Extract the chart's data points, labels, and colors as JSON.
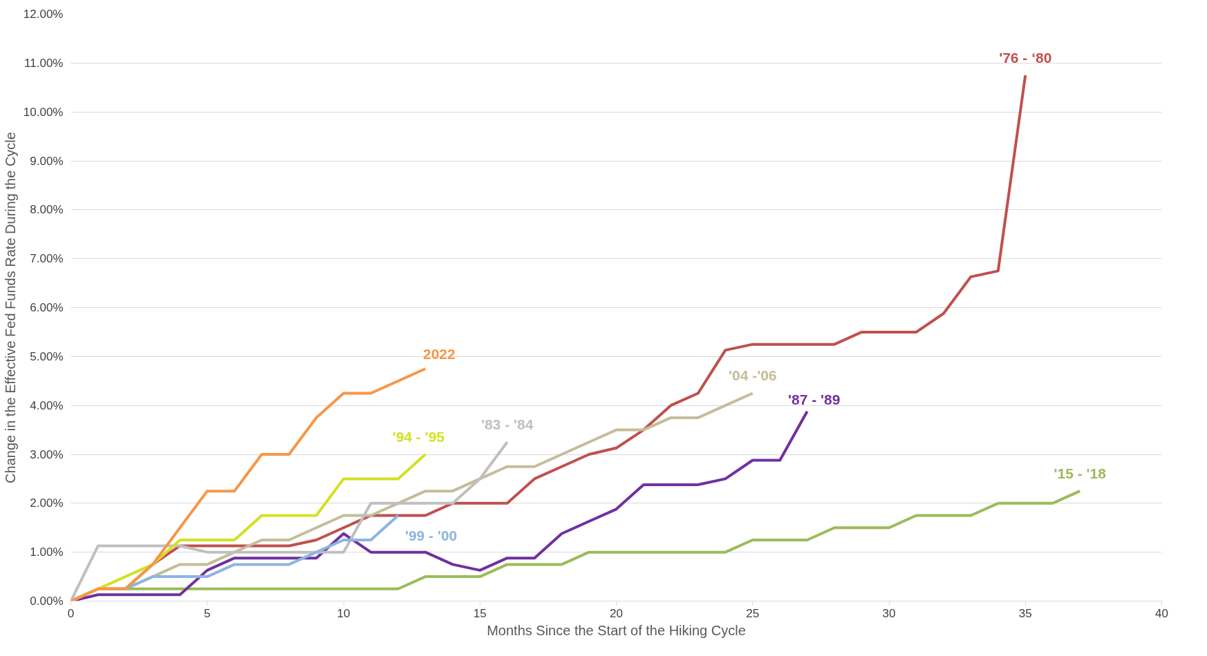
{
  "chart_data": {
    "type": "line",
    "xlabel": "Months Since the Start of the Hiking Cycle",
    "ylabel": "Change in the Effective Fed Funds Rate During the Cycle",
    "xlim": [
      0,
      40
    ],
    "xticks": [
      0,
      5,
      10,
      15,
      20,
      25,
      30,
      35,
      40
    ],
    "ylim": [
      0,
      12
    ],
    "yticks": [
      {
        "value": 0,
        "label": "0.00%"
      },
      {
        "value": 1,
        "label": "1.00%"
      },
      {
        "value": 2,
        "label": "2.00%"
      },
      {
        "value": 3,
        "label": "3.00%"
      },
      {
        "value": 4,
        "label": "4.00%"
      },
      {
        "value": 5,
        "label": "5.00%"
      },
      {
        "value": 6,
        "label": "6.00%"
      },
      {
        "value": 7,
        "label": "7.00%"
      },
      {
        "value": 8,
        "label": "8.00%"
      },
      {
        "value": 9,
        "label": "9.00%"
      },
      {
        "value": 10,
        "label": "10.00%"
      },
      {
        "value": 11,
        "label": "11.00%"
      },
      {
        "value": 12,
        "label": "12.00%"
      }
    ],
    "grid": "y",
    "marker": "none",
    "line_style": "solid",
    "series": [
      {
        "name": "'76 - ‘80",
        "color": "#c0504d",
        "x": [
          0,
          1,
          2,
          3,
          4,
          5,
          6,
          7,
          8,
          9,
          10,
          11,
          12,
          13,
          14,
          15,
          16,
          17,
          18,
          19,
          20,
          21,
          22,
          23,
          24,
          25,
          26,
          27,
          28,
          29,
          30,
          31,
          32,
          33,
          34,
          35
        ],
        "values": [
          0,
          0.25,
          0.25,
          0.75,
          1.13,
          1.13,
          1.13,
          1.13,
          1.13,
          1.25,
          1.5,
          1.75,
          1.75,
          1.75,
          2,
          2,
          2,
          2.5,
          2.75,
          3,
          3.13,
          3.5,
          4,
          4.25,
          5.13,
          5.25,
          5.25,
          5.25,
          5.25,
          5.5,
          5.5,
          5.5,
          5.88,
          6.63,
          6.75,
          10.75
        ]
      },
      {
        "name": "'15 - '18",
        "color": "#9bbb59",
        "x": [
          0,
          1,
          2,
          3,
          4,
          5,
          6,
          7,
          8,
          9,
          10,
          11,
          12,
          13,
          14,
          15,
          16,
          17,
          18,
          19,
          20,
          21,
          22,
          23,
          24,
          25,
          26,
          27,
          28,
          29,
          30,
          31,
          32,
          33,
          34,
          35,
          36,
          37
        ],
        "values": [
          0,
          0.25,
          0.25,
          0.25,
          0.25,
          0.25,
          0.25,
          0.25,
          0.25,
          0.25,
          0.25,
          0.25,
          0.25,
          0.5,
          0.5,
          0.5,
          0.75,
          0.75,
          0.75,
          1,
          1,
          1,
          1,
          1,
          1,
          1.25,
          1.25,
          1.25,
          1.5,
          1.5,
          1.5,
          1.75,
          1.75,
          1.75,
          2,
          2,
          2,
          2.25
        ]
      },
      {
        "name": "'87 - '89",
        "color": "#7030a0",
        "x": [
          0,
          1,
          2,
          3,
          4,
          5,
          6,
          7,
          8,
          9,
          10,
          11,
          12,
          13,
          14,
          15,
          16,
          17,
          18,
          19,
          20,
          21,
          22,
          23,
          24,
          25,
          26,
          27
        ],
        "values": [
          0,
          0.13,
          0.13,
          0.13,
          0.13,
          0.63,
          0.88,
          0.88,
          0.88,
          0.88,
          1.38,
          1,
          1,
          1,
          0.75,
          0.63,
          0.88,
          0.88,
          1.38,
          1.63,
          1.88,
          2.38,
          2.38,
          2.38,
          2.5,
          2.88,
          2.88,
          3.88
        ]
      },
      {
        "name": "'04 -'06",
        "color": "#c4bd97",
        "x": [
          0,
          1,
          2,
          3,
          4,
          5,
          6,
          7,
          8,
          9,
          10,
          11,
          12,
          13,
          14,
          15,
          16,
          17,
          18,
          19,
          20,
          21,
          22,
          23,
          24,
          25
        ],
        "values": [
          0,
          0.25,
          0.25,
          0.5,
          0.75,
          0.75,
          1,
          1.25,
          1.25,
          1.5,
          1.75,
          1.75,
          2,
          2.25,
          2.25,
          2.5,
          2.75,
          2.75,
          3,
          3.25,
          3.5,
          3.5,
          3.75,
          3.75,
          4,
          4.25
        ]
      },
      {
        "name": "'83 - '84",
        "color": "#bfbfbf",
        "x": [
          0,
          1,
          2,
          3,
          4,
          5,
          6,
          7,
          8,
          9,
          10,
          11,
          12,
          13,
          14,
          15,
          16
        ],
        "values": [
          0,
          1.13,
          1.13,
          1.13,
          1.13,
          1,
          1,
          1,
          1,
          1,
          1,
          2,
          2,
          2,
          2,
          2.5,
          3.25
        ]
      },
      {
        "name": "'99 - '00",
        "color": "#8db4e2",
        "x": [
          2,
          3,
          4,
          5,
          6,
          7,
          8,
          9,
          10,
          11,
          12
        ],
        "values": [
          0.25,
          0.5,
          0.5,
          0.5,
          0.75,
          0.75,
          0.75,
          1,
          1.25,
          1.25,
          1.75
        ]
      },
      {
        "name": "'94 - '95",
        "color": "#d4e021",
        "x": [
          0,
          1,
          2,
          3,
          4,
          5,
          6,
          7,
          8,
          9,
          10,
          11,
          12,
          13
        ],
        "values": [
          0,
          0.25,
          0.5,
          0.75,
          1.25,
          1.25,
          1.25,
          1.75,
          1.75,
          1.75,
          2.5,
          2.5,
          2.5,
          3
        ]
      },
      {
        "name": "2022",
        "color": "#f79646",
        "x": [
          0,
          1,
          2,
          3,
          4,
          5,
          6,
          7,
          8,
          9,
          10,
          11,
          12,
          13
        ],
        "values": [
          0,
          0.25,
          0.25,
          0.75,
          1.5,
          2.25,
          2.25,
          3,
          3,
          3.75,
          4.25,
          4.25,
          4.5,
          4.75
        ]
      }
    ]
  }
}
